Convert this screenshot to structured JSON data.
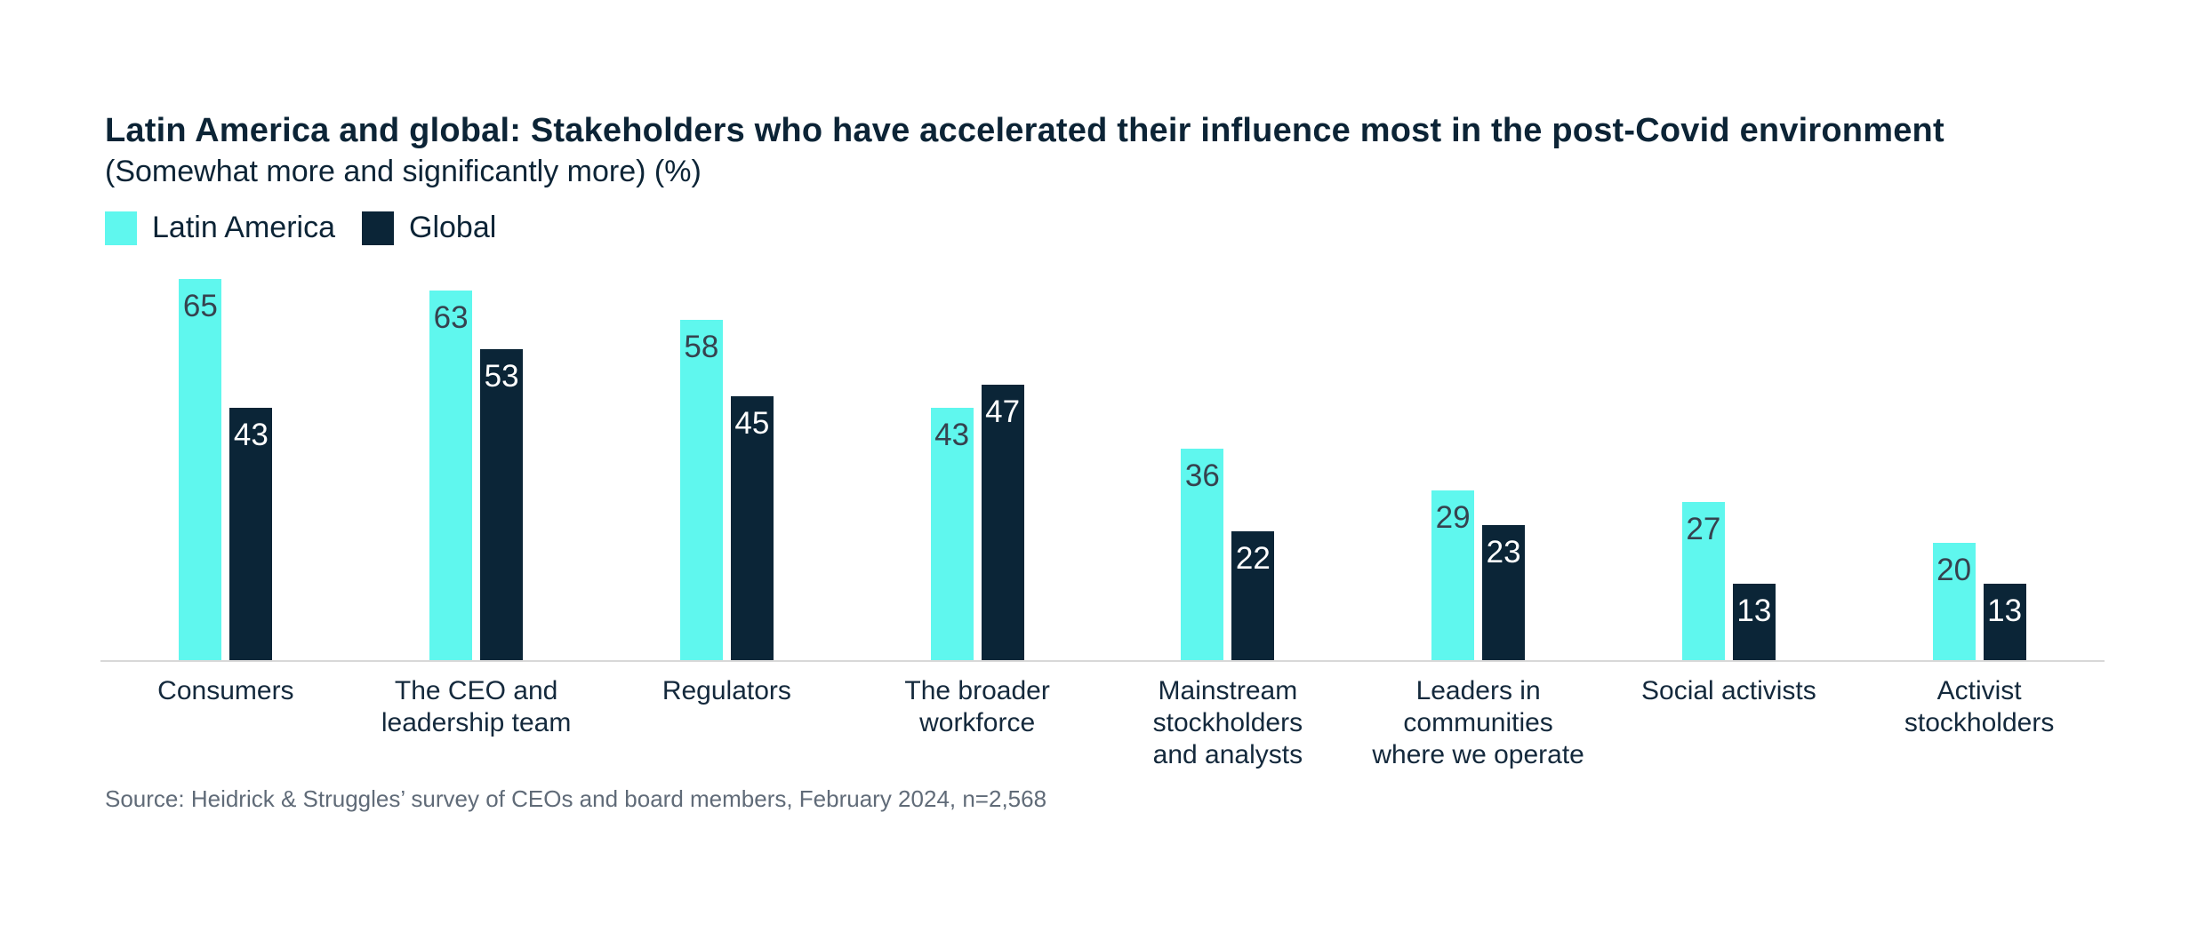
{
  "header": {
    "title": "Latin America and global: Stakeholders who have accelerated their influence most in the post-Covid environment",
    "subtitle": "(Somewhat more and significantly more) (%)"
  },
  "legend": {
    "items": [
      {
        "label": "Latin America",
        "color": "#5ff7ee"
      },
      {
        "label": "Global",
        "color": "#0b2537"
      }
    ]
  },
  "colors": {
    "latin_america": "#5ff7ee",
    "global": "#0b2537",
    "title_text": "#0c2436",
    "value_text_on_cyan": "#36424f",
    "value_text_on_navy": "#ffffff",
    "category_text": "#14293c",
    "source_text": "#606b78",
    "axis_line": "#d8d8d8"
  },
  "chart_data": {
    "type": "bar",
    "title": "Latin America and global: Stakeholders who have accelerated their influence most in the post-Covid environment",
    "subtitle": "(Somewhat more and significantly more) (%)",
    "unit": "%",
    "ylim": [
      0,
      65
    ],
    "grid": false,
    "legend_position": "top-left",
    "value_labels": "inside-top",
    "categories": [
      "Consumers",
      "The CEO and\nleadership team",
      "Regulators",
      "The broader\nworkforce",
      "Mainstream\nstockholders\nand analysts",
      "Leaders in\ncommunities\nwhere we operate",
      "Social activists",
      "Activist\nstockholders"
    ],
    "series": [
      {
        "name": "Latin America",
        "color": "#5ff7ee",
        "values": [
          65,
          63,
          58,
          43,
          36,
          29,
          27,
          20
        ]
      },
      {
        "name": "Global",
        "color": "#0b2537",
        "values": [
          43,
          53,
          45,
          47,
          22,
          23,
          13,
          13
        ]
      }
    ]
  },
  "source": {
    "text": "Source: Heidrick & Struggles’ survey of CEOs and board members, February 2024, n=2,568"
  }
}
